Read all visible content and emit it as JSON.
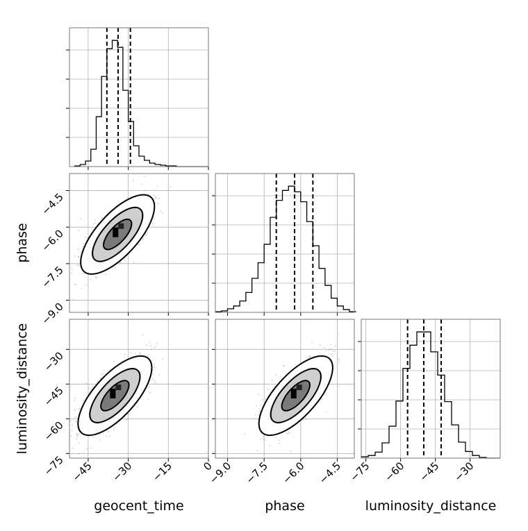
{
  "chart_data": {
    "type": "corner",
    "parameters": [
      {
        "name": "geocent_time",
        "xlim": [
          -52,
          0
        ],
        "ticks": [
          -45,
          -30,
          -15,
          0
        ],
        "tick_labels": [
          "−45",
          "−30",
          "−15",
          "0"
        ],
        "quantiles": [
          -38,
          -33.8,
          -29.2
        ]
      },
      {
        "name": "phase",
        "xlim": [
          -9.5,
          -3.8
        ],
        "ticks": [
          -9.0,
          -7.5,
          -6.0,
          -4.5
        ],
        "tick_labels": [
          "−9.0",
          "−7.5",
          "−6.0",
          "−4.5"
        ],
        "quantiles": [
          -7.0,
          -6.25,
          -5.5
        ]
      },
      {
        "name": "luminosity_distance",
        "xlim": [
          -77,
          -17
        ],
        "ticks": [
          -75,
          -60,
          -45,
          -30
        ],
        "tick_labels": [
          "−75",
          "−60",
          "−45",
          "−30"
        ],
        "quantiles": [
          -57,
          -50,
          -42.5
        ]
      }
    ],
    "histograms": [
      {
        "parameter": "geocent_time",
        "bin_edges": [
          -50,
          -48,
          -46,
          -44,
          -42,
          -40,
          -38,
          -36,
          -34,
          -32,
          -30,
          -28,
          -26,
          -24,
          -22,
          -20,
          -18,
          -16,
          -14,
          -12,
          -10,
          -8,
          -6,
          -4,
          -2,
          0
        ],
        "counts": [
          1,
          3,
          8,
          25,
          72,
          130,
          170,
          182,
          172,
          110,
          65,
          30,
          15,
          9,
          5,
          3,
          2,
          1,
          1,
          0,
          0,
          0,
          0,
          0,
          0
        ]
      },
      {
        "parameter": "phase",
        "bin_edges": [
          -9.5,
          -9.25,
          -9.0,
          -8.75,
          -8.5,
          -8.25,
          -8.0,
          -7.75,
          -7.5,
          -7.25,
          -7.0,
          -6.75,
          -6.5,
          -6.25,
          -6.0,
          -5.75,
          -5.5,
          -5.25,
          -5.0,
          -4.75,
          -4.5,
          -4.25,
          -4.0,
          -3.75
        ],
        "counts": [
          1,
          2,
          5,
          9,
          16,
          28,
          48,
          70,
          96,
          134,
          158,
          172,
          178,
          170,
          156,
          128,
          94,
          62,
          38,
          20,
          9,
          4,
          1
        ]
      },
      {
        "parameter": "luminosity_distance",
        "bin_edges": [
          -77,
          -74,
          -71,
          -68,
          -65,
          -62,
          -59,
          -56,
          -53,
          -50,
          -47,
          -44,
          -41,
          -38,
          -35,
          -32,
          -29,
          -26,
          -23,
          -20,
          -17
        ],
        "counts": [
          2,
          4,
          9,
          23,
          48,
          86,
          135,
          170,
          190,
          190,
          160,
          125,
          85,
          50,
          24,
          10,
          4,
          1,
          0,
          0
        ]
      }
    ],
    "correlations": [
      {
        "x": "geocent_time",
        "y": "phase",
        "center": [
          -34,
          -6.3
        ],
        "contour_levels": [
          "inner",
          "middle",
          "outer"
        ]
      },
      {
        "x": "geocent_time",
        "y": "luminosity_distance",
        "center": [
          -35,
          -50
        ],
        "contour_levels": [
          "inner",
          "middle",
          "outer"
        ]
      },
      {
        "x": "phase",
        "y": "luminosity_distance",
        "center": [
          -6.2,
          -50
        ],
        "contour_levels": [
          "inner",
          "middle",
          "outer"
        ]
      }
    ]
  }
}
